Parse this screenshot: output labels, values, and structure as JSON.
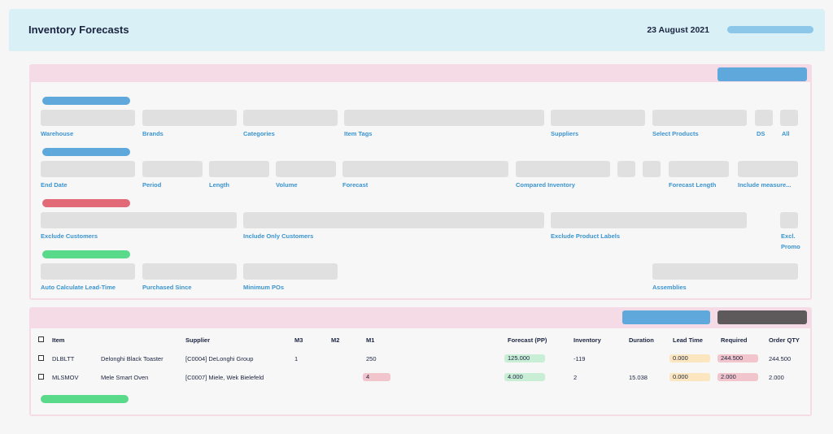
{
  "header": {
    "title": "Inventory Forecasts",
    "date": "23 August 2021"
  },
  "filters": {
    "row1": {
      "warehouse": "Warehouse",
      "brands": "Brands",
      "categories": "Categories",
      "item_tags": "Item Tags",
      "suppliers": "Suppliers",
      "select_products": "Select Products",
      "ds": "DS",
      "all": "All"
    },
    "row2": {
      "end_date": "End Date",
      "period": "Period",
      "length": "Length",
      "volume": "Volume",
      "forecast": "Forecast",
      "compared_inventory": "Compared Inventory",
      "forecast_length": "Forecast Length",
      "include_measure": "Include measure..."
    },
    "row3": {
      "exclude_customers": "Exclude Customers",
      "include_only_customers": "Include Only Customers",
      "exclude_product_labels": "Exclude Product Labels",
      "excl_promo_1": "Excl.",
      "excl_promo_2": "Promo"
    },
    "row4": {
      "auto_calculate_lead_time": "Auto Calculate Lead-Time",
      "purchased_since": "Purchased Since",
      "minimum_pos": "Minimum POs",
      "assemblies": "Assemblies"
    }
  },
  "table": {
    "headers": {
      "item": "Item",
      "supplier": "Supplier",
      "m3": "M3",
      "m2": "M2",
      "m1": "M1",
      "forecast_pp": "Forecast (PP)",
      "inventory": "Inventory",
      "duration": "Duration",
      "lead_time": "Lead Time",
      "required": "Required",
      "order_qty": "Order QTY"
    },
    "rows": [
      {
        "code": "DLBLTT",
        "name": "Delonghi Black Toaster",
        "supplier": "[C0004] DeLonghi Group",
        "m3": "1",
        "m2": "",
        "m1": "250",
        "forecast": "125.000",
        "inventory": "-119",
        "duration": "",
        "lead_time": "0.000",
        "required": "244.500",
        "order_qty": "244.500"
      },
      {
        "code": "MLSMOV",
        "name": "Mele Smart Oven",
        "supplier": "[C0007] Miele, Wek Bielefeld",
        "m3": "",
        "m2": "",
        "m1": "4",
        "forecast": "4.000",
        "inventory": "2",
        "duration": "15.038",
        "lead_time": "0.000",
        "required": "2.000",
        "order_qty": "2.000"
      }
    ]
  },
  "colors": {
    "header_bg": "#d8f0f6",
    "panel_border": "#f5dbe6",
    "accent_blue": "#5fa8dc",
    "label_blue": "#3a94d0",
    "alert_red": "#e26a76",
    "success_green": "#59d98a",
    "dark_button": "#5e5a5b"
  }
}
